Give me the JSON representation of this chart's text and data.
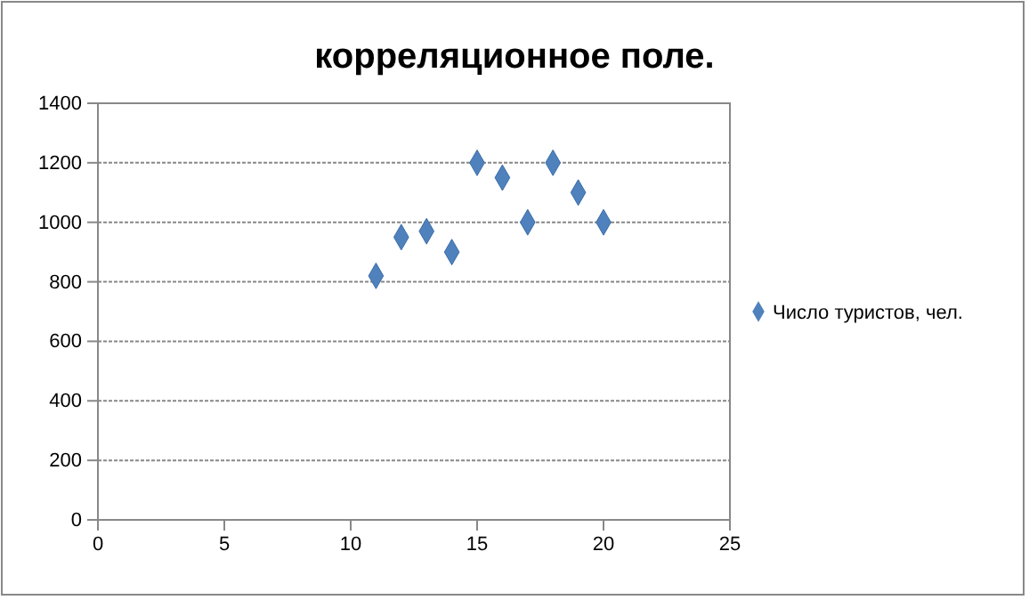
{
  "chart_data": {
    "type": "scatter",
    "title": "корреляционное поле.",
    "x": [
      11,
      12,
      13,
      14,
      15,
      16,
      17,
      18,
      19,
      20
    ],
    "series": [
      {
        "name": "Число туристов, чел.",
        "color": "#4f81bd",
        "values": [
          820,
          950,
          970,
          900,
          1200,
          1150,
          1000,
          1200,
          1100,
          1000
        ]
      }
    ],
    "xlim": [
      0,
      25
    ],
    "xticks": [
      0,
      5,
      10,
      15,
      20,
      25
    ],
    "ylim": [
      0,
      1400
    ],
    "yticks": [
      0,
      200,
      400,
      600,
      800,
      1000,
      1200,
      1400
    ],
    "grid": "y",
    "legend": "right",
    "marker": "diamond"
  }
}
